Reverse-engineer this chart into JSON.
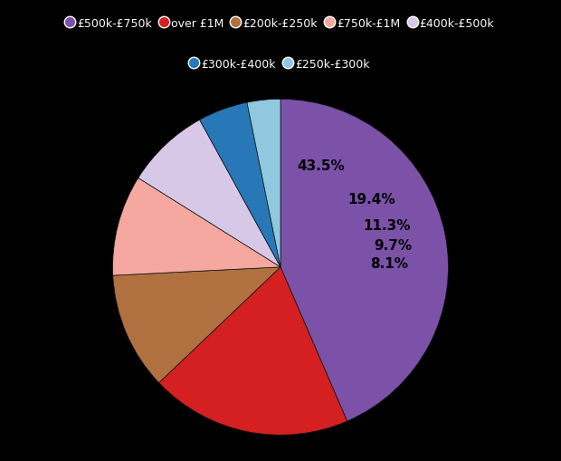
{
  "slices": [
    {
      "label": "£500k-£750k",
      "value": 43.5,
      "color": "#7B52A8"
    },
    {
      "label": "over £1M",
      "value": 19.4,
      "color": "#D42020"
    },
    {
      "label": "£200k-£250k",
      "value": 11.3,
      "color": "#B07040"
    },
    {
      "label": "£750k-£1M",
      "value": 9.7,
      "color": "#F4A8A0"
    },
    {
      "label": "£400k-£500k",
      "value": 8.1,
      "color": "#D8C8E8"
    },
    {
      "label": "£300k-£400k",
      "value": 4.8,
      "color": "#2878B8"
    },
    {
      "label": "£250k-£300k",
      "value": 3.2,
      "color": "#90C8E0"
    }
  ],
  "background_color": "#000000",
  "text_color": "#ffffff",
  "label_color": "#000000",
  "pct_labels": [
    "43.5%",
    "19.4%",
    "11.3%",
    "9.7%",
    "8.1%",
    "",
    ""
  ],
  "label_radii": [
    0.65,
    0.68,
    0.68,
    0.68,
    0.65,
    0.0,
    0.0
  ],
  "startangle": 90,
  "legend_ncol_row1": 5,
  "legend_ncol_row2": 2
}
